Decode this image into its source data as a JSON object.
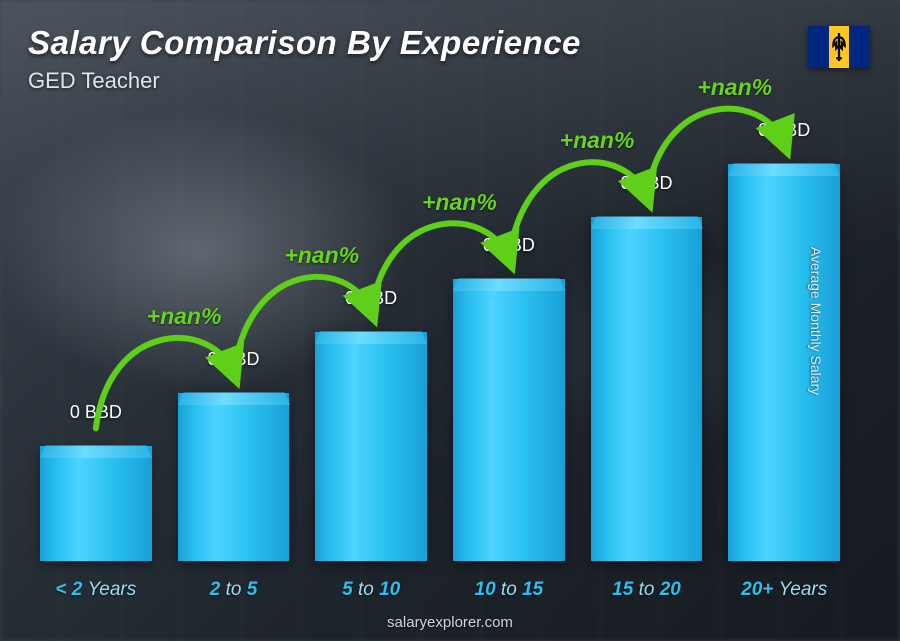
{
  "header": {
    "title": "Salary Comparison By Experience",
    "subtitle": "GED Teacher"
  },
  "flag": {
    "left_color": "#00267f",
    "center_color": "#ffc726",
    "right_color": "#00267f",
    "emblem_color": "#000000"
  },
  "y_axis_label": "Average Monthly Salary",
  "footer": "salaryexplorer.com",
  "chart": {
    "type": "bar",
    "bar_color_gradient": [
      "#1a9fd8",
      "#29c0f0",
      "#4dd3ff",
      "#29c0f0",
      "#1a9fd8"
    ],
    "bar_top_gradient": [
      "#2bb5e8",
      "#6ddcff",
      "#2bb5e8"
    ],
    "value_text_color": "#ffffff",
    "x_label_color": "#2bc0f0",
    "x_label_thin_color": "#9cdcf5",
    "arc_color": "#5fcf1a",
    "arc_label_color": "#66d41f",
    "background_tone": "#3a4048",
    "bars": [
      {
        "label_pre": "< 2",
        "label_post": "Years",
        "value_label": "0 BBD",
        "height_pct": 26
      },
      {
        "label_pre": "2",
        "label_mid": "to",
        "label_post": "5",
        "value_label": "0 BBD",
        "height_pct": 38
      },
      {
        "label_pre": "5",
        "label_mid": "to",
        "label_post": "10",
        "value_label": "0 BBD",
        "height_pct": 52
      },
      {
        "label_pre": "10",
        "label_mid": "to",
        "label_post": "15",
        "value_label": "0 BBD",
        "height_pct": 64
      },
      {
        "label_pre": "15",
        "label_mid": "to",
        "label_post": "20",
        "value_label": "0 BBD",
        "height_pct": 78
      },
      {
        "label_pre": "20+",
        "label_post": "Years",
        "value_label": "0 BBD",
        "height_pct": 90
      }
    ],
    "arcs": [
      {
        "label": "+nan%"
      },
      {
        "label": "+nan%"
      },
      {
        "label": "+nan%"
      },
      {
        "label": "+nan%"
      },
      {
        "label": "+nan%"
      }
    ]
  }
}
